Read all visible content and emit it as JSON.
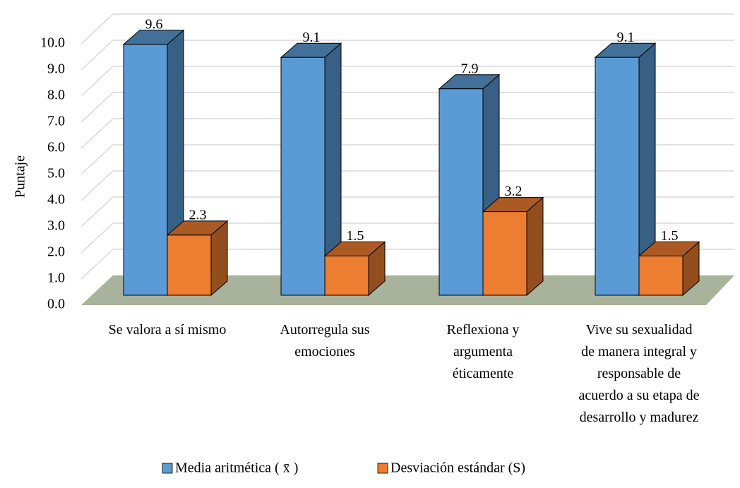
{
  "chart_data": {
    "type": "bar3d",
    "y_label": "Puntaje",
    "categories": [
      "Se valora a sí mismo",
      "Autorregula sus\nemociones",
      "Reflexiona y\nargumenta\néticamente",
      "Vive su sexualidad\nde manera integral y\nresponsable de\nacuerdo a su etapa de\ndesarrollo y madurez"
    ],
    "series": [
      {
        "name": "Media aritmética ( x̄ )",
        "color": "#5b9bd5",
        "values": [
          9.6,
          9.1,
          7.9,
          9.1
        ]
      },
      {
        "name": "Desviación estándar (S)",
        "color": "#ed7d31",
        "values": [
          2.3,
          1.5,
          3.2,
          1.5
        ]
      }
    ],
    "ylim": [
      0,
      10
    ],
    "yticks": [
      {
        "value": 0,
        "label": "0.0"
      },
      {
        "value": 1,
        "label": "1.0"
      },
      {
        "value": 2,
        "label": "2.0"
      },
      {
        "value": 3,
        "label": "3.0"
      },
      {
        "value": 4,
        "label": "4.0"
      },
      {
        "value": 5,
        "label": "5.0"
      },
      {
        "value": 6,
        "label": "6.0"
      },
      {
        "value": 7,
        "label": "7.0"
      },
      {
        "value": 8,
        "label": "8.0"
      },
      {
        "value": 9,
        "label": "9.0"
      },
      {
        "value": 10,
        "label": "10.0"
      }
    ],
    "grid": true,
    "legend": "bottom"
  }
}
